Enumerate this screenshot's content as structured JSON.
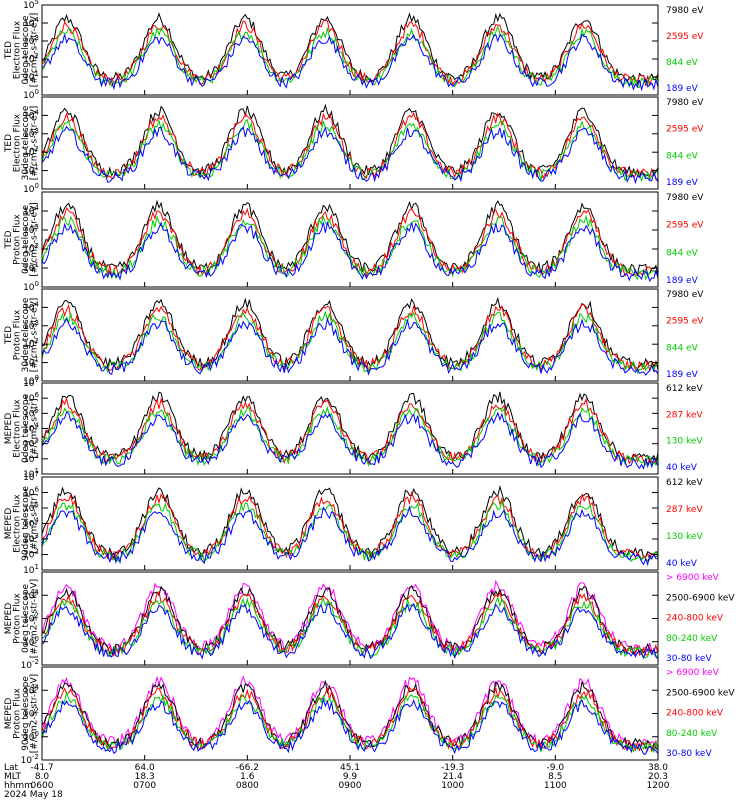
{
  "chart_data": {
    "type": "line",
    "panels": [
      {
        "ylabel_lines": [
          "TED",
          "Electron Flux",
          "0deg telescope",
          "[#/cm2-s-str-eV]"
        ],
        "ylim_exp": [
          0,
          5
        ],
        "tick_exps": [
          0,
          1,
          2,
          3,
          4,
          5
        ],
        "legend": [
          {
            "label": "7980 eV",
            "color": "#000000"
          },
          {
            "label": "2595 eV",
            "color": "#ff0000"
          },
          {
            "label": "844 eV",
            "color": "#00cc00"
          },
          {
            "label": "189 eV",
            "color": "#0000ff"
          }
        ]
      },
      {
        "ylabel_lines": [
          "TED",
          "Electron Flux",
          "30deg telescope",
          "[#/cm2-s-str-eV]"
        ],
        "ylim_exp": [
          0,
          5
        ],
        "tick_exps": [
          0,
          1,
          2,
          3,
          4
        ],
        "legend": [
          {
            "label": "7980 eV",
            "color": "#000000"
          },
          {
            "label": "2595 eV",
            "color": "#ff0000"
          },
          {
            "label": "844 eV",
            "color": "#00cc00"
          },
          {
            "label": "189 eV",
            "color": "#0000ff"
          }
        ]
      },
      {
        "ylabel_lines": [
          "TED",
          "Proton Flux",
          "0deg telescope",
          "[#/cm2-s-str-eV]"
        ],
        "ylim_exp": [
          0,
          5
        ],
        "tick_exps": [
          0,
          1,
          2,
          3,
          4
        ],
        "legend": [
          {
            "label": "7980 eV",
            "color": "#000000"
          },
          {
            "label": "2595 eV",
            "color": "#ff0000"
          },
          {
            "label": "844 eV",
            "color": "#00cc00"
          },
          {
            "label": "189 eV",
            "color": "#0000ff"
          }
        ]
      },
      {
        "ylabel_lines": [
          "TED",
          "Proton Flux",
          "30deg telescope",
          "[#/cm2-s-str-eV]"
        ],
        "ylim_exp": [
          0,
          5
        ],
        "tick_exps": [
          0,
          1,
          2,
          3,
          4
        ],
        "legend": [
          {
            "label": "7980 eV",
            "color": "#000000"
          },
          {
            "label": "2595 eV",
            "color": "#ff0000"
          },
          {
            "label": "844 eV",
            "color": "#00cc00"
          },
          {
            "label": "189 eV",
            "color": "#0000ff"
          }
        ]
      },
      {
        "ylabel_lines": [
          "MEPED",
          "Electron Flux",
          "0deg telescope",
          "[#/cm2-s-str]"
        ],
        "ylim_exp": [
          1,
          7
        ],
        "tick_exps": [
          1,
          2,
          3,
          4,
          5,
          6,
          7
        ],
        "legend": [
          {
            "label": "612 keV",
            "color": "#000000"
          },
          {
            "label": "287 keV",
            "color": "#ff0000"
          },
          {
            "label": "130 keV",
            "color": "#00cc00"
          },
          {
            "label": "40 keV",
            "color": "#0000ff"
          }
        ]
      },
      {
        "ylabel_lines": [
          "MEPED",
          "Electron Flux",
          "90deg telescope",
          "[#/cm2-s-str]"
        ],
        "ylim_exp": [
          1,
          7
        ],
        "tick_exps": [
          1,
          2,
          3,
          4,
          5,
          6,
          7
        ],
        "legend": [
          {
            "label": "612 keV",
            "color": "#000000"
          },
          {
            "label": "287 keV",
            "color": "#ff0000"
          },
          {
            "label": "130 keV",
            "color": "#00cc00"
          },
          {
            "label": "40 keV",
            "color": "#0000ff"
          }
        ]
      },
      {
        "ylabel_lines": [
          "MEPED",
          "Proton Flux",
          "0deg telescope",
          "[#/cm2-s-str-keV]"
        ],
        "ylim_exp": [
          -2,
          6
        ],
        "tick_exps": [
          -2,
          0,
          2,
          4
        ],
        "legend": [
          {
            "label": "> 6900 keV",
            "color": "#ff00ff"
          },
          {
            "label": "2500-6900 keV",
            "color": "#000000"
          },
          {
            "label": "240-800 keV",
            "color": "#ff0000"
          },
          {
            "label": "80-240 keV",
            "color": "#00cc00"
          },
          {
            "label": "30-80 keV",
            "color": "#0000ff"
          }
        ]
      },
      {
        "ylabel_lines": [
          "MEPED",
          "Proton Flux",
          "90deg telescope",
          "[#/cm2-s-str-keV]"
        ],
        "ylim_exp": [
          -2,
          6
        ],
        "tick_exps": [
          -2,
          0,
          2,
          4
        ],
        "legend": [
          {
            "label": "> 6900 keV",
            "color": "#ff00ff"
          },
          {
            "label": "2500-6900 keV",
            "color": "#000000"
          },
          {
            "label": "240-800 keV",
            "color": "#ff0000"
          },
          {
            "label": "80-240 keV",
            "color": "#00cc00"
          },
          {
            "label": "30-80 keV",
            "color": "#0000ff"
          }
        ]
      }
    ],
    "x_axis": {
      "row_labels": [
        "Lat",
        "MLT",
        "hhmm",
        "2024 May 18"
      ],
      "ticks": [
        {
          "lat": "-41.7",
          "mlt": "8.0",
          "hhmm": "0600"
        },
        {
          "lat": "64.0",
          "mlt": "18.3",
          "hhmm": "0700"
        },
        {
          "lat": "-66.2",
          "mlt": "1.6",
          "hhmm": "0800"
        },
        {
          "lat": "45.1",
          "mlt": "9.9",
          "hhmm": "0900"
        },
        {
          "lat": "-19.3",
          "mlt": "21.4",
          "hhmm": "1000"
        },
        {
          "lat": "-9.0",
          "mlt": "8.5",
          "hhmm": "1100"
        },
        {
          "lat": "38.0",
          "mlt": "20.3",
          "hhmm": "1200"
        }
      ]
    }
  }
}
